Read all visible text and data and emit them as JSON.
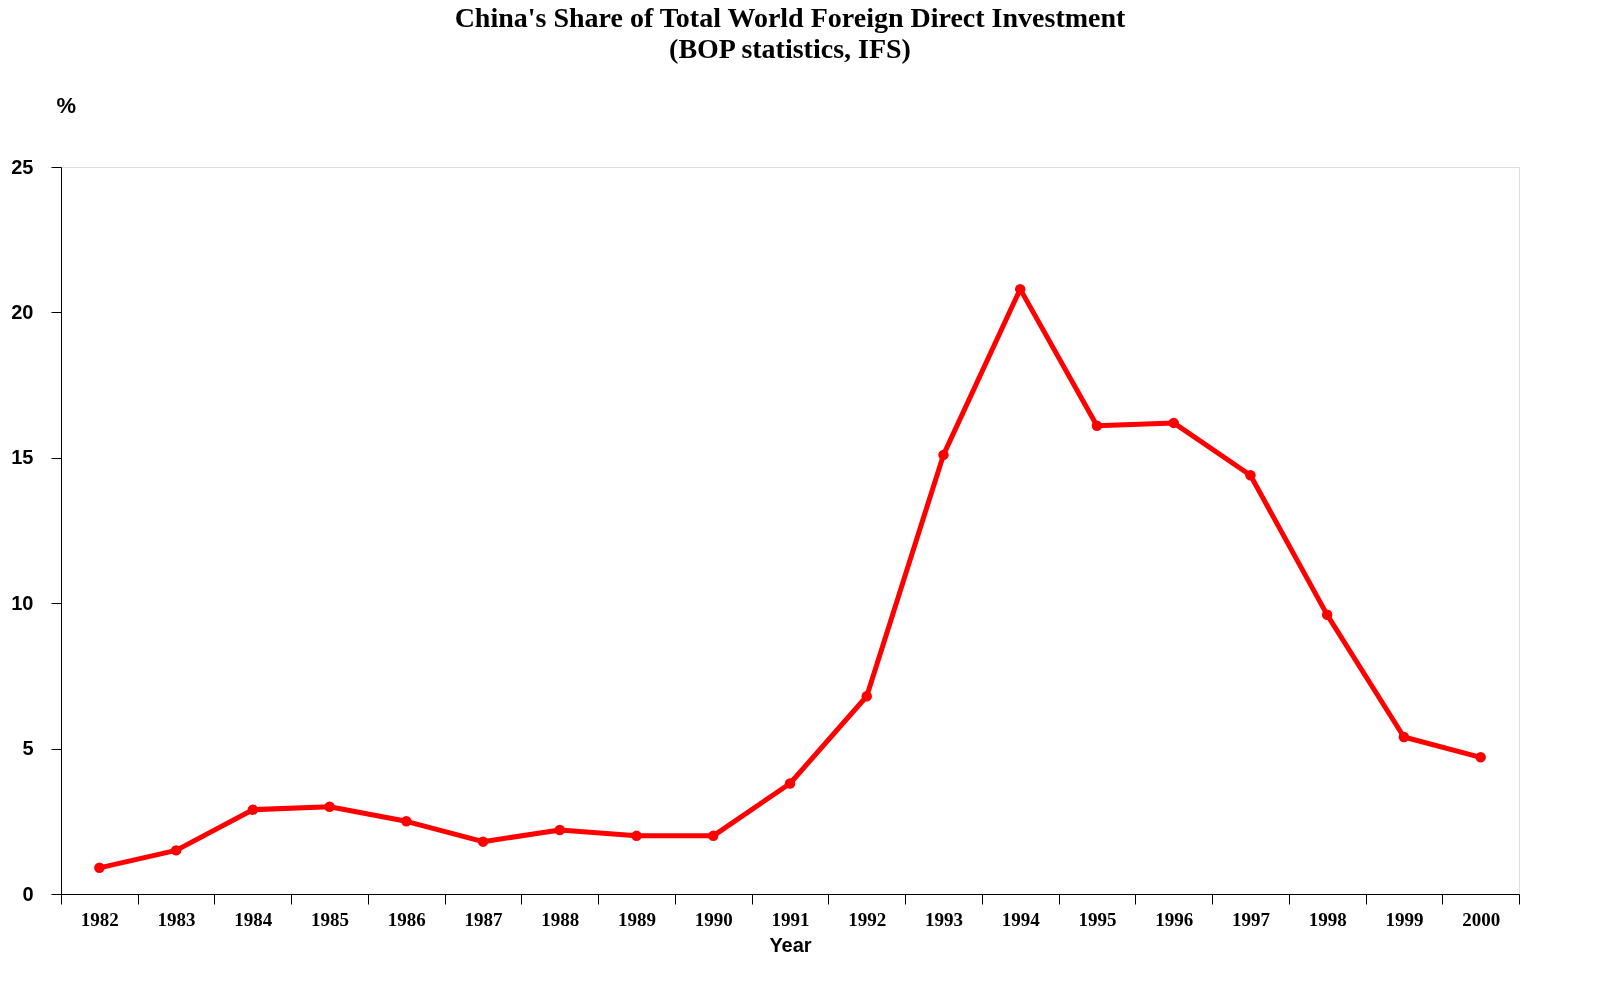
{
  "chart_data": {
    "type": "line",
    "title": "China's Share of Total World Foreign Direct Investment",
    "subtitle": "(BOP statistics, IFS)",
    "ylabel": "%",
    "xlabel": "Year",
    "categories": [
      "1982",
      "1983",
      "1984",
      "1985",
      "1986",
      "1987",
      "1988",
      "1989",
      "1990",
      "1991",
      "1992",
      "1993",
      "1994",
      "1995",
      "1996",
      "1997",
      "1998",
      "1999",
      "2000"
    ],
    "series": [
      {
        "color": "#ff0000",
        "values": [
          0.9,
          1.5,
          2.9,
          3.0,
          2.5,
          1.8,
          2.2,
          2.0,
          2.0,
          3.8,
          6.8,
          15.1,
          20.8,
          16.1,
          16.2,
          14.4,
          9.6,
          5.4,
          4.7
        ]
      }
    ],
    "ylim": [
      0,
      25
    ],
    "yticks": [
      0,
      5,
      10,
      15,
      20,
      25
    ],
    "grid": false,
    "legend": false,
    "marker": "circle",
    "line_style": "solid"
  }
}
